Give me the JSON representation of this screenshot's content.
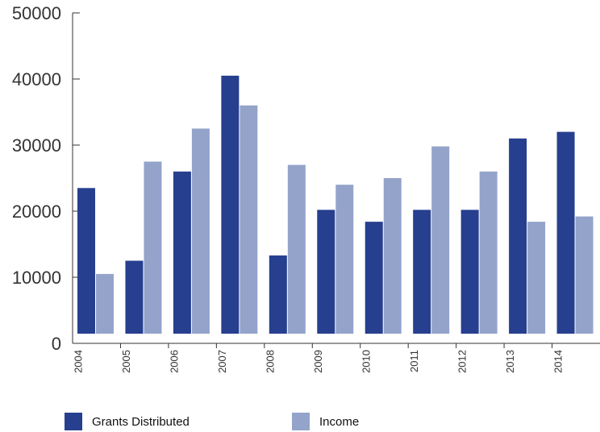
{
  "chart_data": {
    "type": "bar",
    "categories": [
      "2004",
      "2005",
      "2006",
      "2007",
      "2008",
      "2009",
      "2010",
      "2011",
      "2012",
      "2013",
      "2014"
    ],
    "series": [
      {
        "name": "Grants Distributed",
        "color": "#263f8f",
        "values": [
          23500,
          12500,
          26000,
          40500,
          13300,
          20200,
          18400,
          20200,
          20200,
          31000,
          32000
        ]
      },
      {
        "name": "Income",
        "color": "#94a3c9",
        "values": [
          10500,
          27500,
          32500,
          36000,
          27000,
          24000,
          25000,
          29800,
          26000,
          18400,
          19200
        ]
      }
    ],
    "yticks": [
      0,
      10000,
      20000,
      30000,
      40000,
      50000
    ],
    "ylim": [
      0,
      50000
    ],
    "title": "",
    "xlabel": "",
    "ylabel": "",
    "legend_position": "bottom-left"
  }
}
